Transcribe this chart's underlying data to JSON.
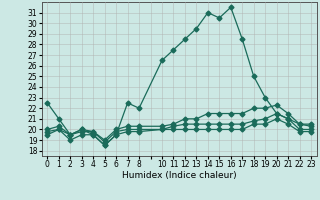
{
  "xlabel": "Humidex (Indice chaleur)",
  "bg_color": "#cce8e4",
  "grid_color": "#b0b0b0",
  "line_color": "#1a6b5a",
  "xlim": [
    -0.5,
    23.5
  ],
  "ylim": [
    17.5,
    32.0
  ],
  "yticks": [
    18,
    19,
    20,
    21,
    22,
    23,
    24,
    25,
    26,
    27,
    28,
    29,
    30,
    31
  ],
  "xtick_labels": [
    "0",
    "1",
    "2",
    "3",
    "4",
    "5",
    "6",
    "7",
    "8",
    "",
    "10",
    "11",
    "12",
    "13",
    "14",
    "15",
    "16",
    "17",
    "18",
    "19",
    "20",
    "21",
    "22",
    "23"
  ],
  "line1_x": [
    0,
    1,
    2,
    3,
    4,
    5,
    6,
    7,
    8,
    10,
    11,
    12,
    13,
    14,
    15,
    16,
    17,
    18,
    19,
    20,
    21,
    22,
    23
  ],
  "line1_y": [
    22.5,
    21.0,
    19.5,
    20.0,
    19.5,
    18.5,
    19.5,
    22.5,
    22.0,
    26.5,
    27.5,
    28.5,
    29.5,
    31.0,
    30.5,
    31.5,
    28.5,
    25.0,
    23.0,
    21.5,
    21.0,
    20.5,
    20.5
  ],
  "line2_x": [
    0,
    1,
    2,
    3,
    4,
    5,
    6,
    7,
    8,
    10,
    11,
    12,
    13,
    14,
    15,
    16,
    17,
    18,
    19,
    20,
    21,
    22,
    23
  ],
  "line2_y": [
    20.0,
    20.3,
    19.5,
    20.0,
    19.8,
    19.0,
    20.0,
    20.3,
    20.3,
    20.3,
    20.5,
    21.0,
    21.0,
    21.5,
    21.5,
    21.5,
    21.5,
    22.0,
    22.0,
    22.3,
    21.5,
    20.5,
    20.3
  ],
  "line3_x": [
    0,
    1,
    2,
    3,
    4,
    5,
    6,
    7,
    8,
    10,
    11,
    12,
    13,
    14,
    15,
    16,
    17,
    18,
    19,
    20,
    21,
    22,
    23
  ],
  "line3_y": [
    19.8,
    20.0,
    19.5,
    19.8,
    19.8,
    18.8,
    19.8,
    20.0,
    20.0,
    20.0,
    20.3,
    20.5,
    20.5,
    20.5,
    20.5,
    20.5,
    20.5,
    20.8,
    21.0,
    21.5,
    21.0,
    20.0,
    20.0
  ],
  "line4_x": [
    0,
    1,
    2,
    3,
    4,
    5,
    6,
    7,
    8,
    10,
    11,
    12,
    13,
    14,
    15,
    16,
    17,
    18,
    19,
    20,
    21,
    22,
    23
  ],
  "line4_y": [
    19.5,
    20.0,
    19.0,
    19.5,
    19.5,
    18.5,
    19.5,
    19.8,
    19.8,
    20.0,
    20.0,
    20.0,
    20.0,
    20.0,
    20.0,
    20.0,
    20.0,
    20.5,
    20.5,
    21.0,
    20.5,
    19.8,
    19.8
  ]
}
